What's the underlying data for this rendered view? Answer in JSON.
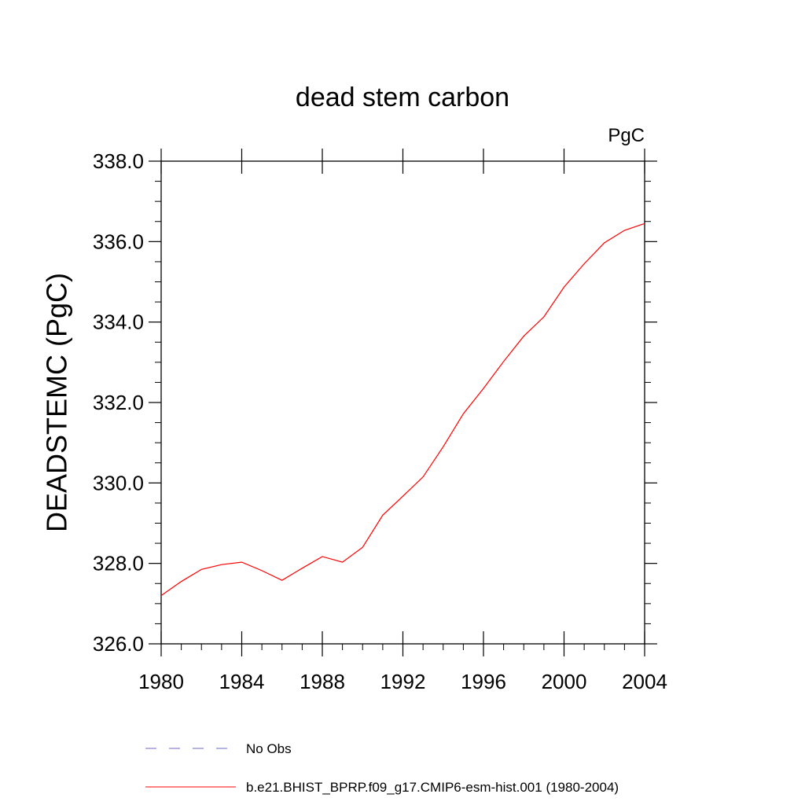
{
  "chart_data": {
    "type": "line",
    "title": "dead stem carbon",
    "units_label": "PgC",
    "xlabel": "",
    "ylabel": "DEADSTEMC  (PgC)",
    "xlim": [
      1980,
      2004
    ],
    "ylim": [
      326.0,
      338.0
    ],
    "x_ticks": [
      1980,
      1984,
      1988,
      1992,
      1996,
      2000,
      2004
    ],
    "y_ticks": [
      "326.0",
      "328.0",
      "330.0",
      "332.0",
      "334.0",
      "336.0",
      "338.0"
    ],
    "series": [
      {
        "name": "No Obs",
        "color": "#6a6ac8",
        "style": "dashed",
        "x": [],
        "values": []
      },
      {
        "name": "b.e21.BHIST_BPRP.f09_g17.CMIP6-esm-hist.001 (1980-2004)",
        "color": "#ff0000",
        "style": "solid",
        "x": [
          1980,
          1981,
          1982,
          1983,
          1984,
          1985,
          1986,
          1987,
          1988,
          1989,
          1990,
          1991,
          1992,
          1993,
          1994,
          1995,
          1996,
          1997,
          1998,
          1999,
          2000,
          2001,
          2002,
          2003,
          2004
        ],
        "values": [
          327.2,
          327.55,
          327.85,
          327.97,
          328.03,
          327.82,
          327.58,
          327.88,
          328.17,
          328.03,
          328.4,
          329.2,
          329.67,
          330.15,
          330.9,
          331.72,
          332.35,
          333.02,
          333.65,
          334.13,
          334.87,
          335.45,
          335.97,
          336.28,
          336.45
        ]
      }
    ]
  }
}
